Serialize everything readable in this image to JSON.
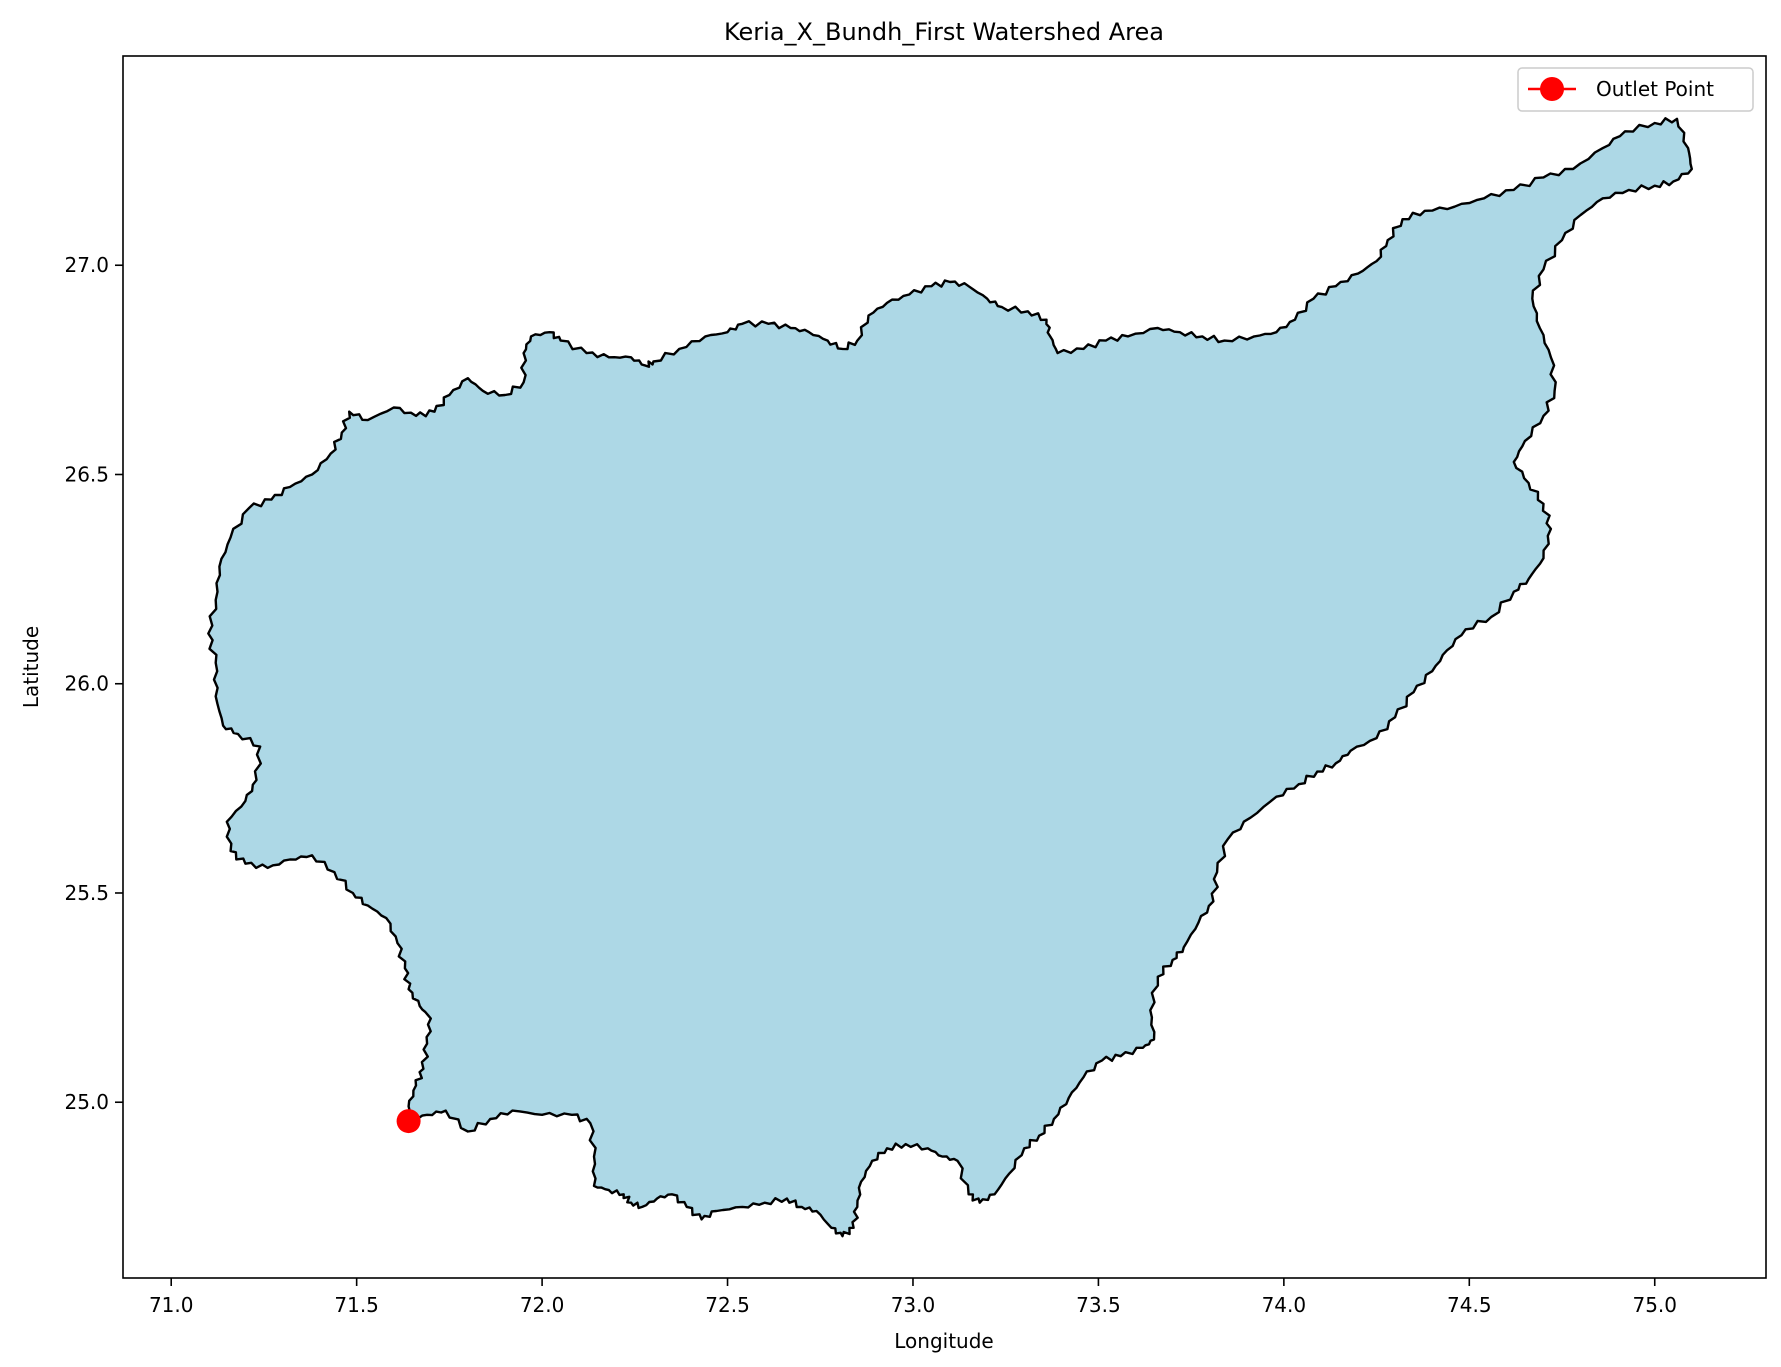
{
  "chart_data": {
    "type": "map",
    "title": "Keria_X_Bundh_First Watershed Area",
    "xlabel": "Longitude",
    "ylabel": "Latitude",
    "xlim": [
      70.87,
      75.3
    ],
    "ylim": [
      24.58,
      27.5
    ],
    "x_ticks": [
      71.0,
      71.5,
      72.0,
      72.5,
      73.0,
      73.5,
      74.0,
      74.5,
      75.0
    ],
    "x_tick_labels": [
      "71.0",
      "71.5",
      "72.0",
      "72.5",
      "73.0",
      "73.5",
      "74.0",
      "74.5",
      "75.0"
    ],
    "y_ticks": [
      25.0,
      25.5,
      26.0,
      26.5,
      27.0
    ],
    "y_tick_labels": [
      "25.0",
      "25.5",
      "26.0",
      "26.5",
      "27.0"
    ],
    "grid": false,
    "legend": {
      "placement": "upper right",
      "entries": [
        {
          "label": "Outlet Point",
          "color": "#ff0000",
          "marker": "circle"
        }
      ]
    },
    "outlet_point": {
      "label": "Outlet Point",
      "lon": 71.64,
      "lat": 24.955,
      "color": "#ff0000"
    },
    "watershed": {
      "fill": "#add8e6",
      "edge": "#000000",
      "boundary": [
        [
          71.64,
          24.955
        ],
        [
          71.69,
          24.97
        ],
        [
          71.74,
          24.98
        ],
        [
          71.8,
          24.93
        ],
        [
          71.86,
          24.96
        ],
        [
          71.92,
          24.98
        ],
        [
          72.0,
          24.97
        ],
        [
          72.08,
          24.97
        ],
        [
          72.13,
          24.95
        ],
        [
          72.14,
          24.87
        ],
        [
          72.14,
          24.8
        ],
        [
          72.18,
          24.79
        ],
        [
          72.22,
          24.78
        ],
        [
          72.24,
          24.76
        ],
        [
          72.27,
          24.75
        ],
        [
          72.31,
          24.77
        ],
        [
          72.35,
          24.78
        ],
        [
          72.39,
          24.75
        ],
        [
          72.43,
          24.72
        ],
        [
          72.47,
          24.74
        ],
        [
          72.54,
          24.75
        ],
        [
          72.6,
          24.76
        ],
        [
          72.66,
          24.77
        ],
        [
          72.7,
          24.75
        ],
        [
          72.74,
          24.74
        ],
        [
          72.78,
          24.7
        ],
        [
          72.81,
          24.68
        ],
        [
          72.84,
          24.7
        ],
        [
          72.85,
          24.75
        ],
        [
          72.86,
          24.81
        ],
        [
          72.89,
          24.86
        ],
        [
          72.93,
          24.89
        ],
        [
          72.98,
          24.9
        ],
        [
          73.04,
          24.89
        ],
        [
          73.08,
          24.87
        ],
        [
          73.12,
          24.86
        ],
        [
          73.15,
          24.78
        ],
        [
          73.18,
          24.76
        ],
        [
          73.22,
          24.78
        ],
        [
          73.26,
          24.83
        ],
        [
          73.3,
          24.89
        ],
        [
          73.34,
          24.92
        ],
        [
          73.38,
          24.96
        ],
        [
          73.42,
          25.01
        ],
        [
          73.46,
          25.06
        ],
        [
          73.51,
          25.1
        ],
        [
          73.56,
          25.11
        ],
        [
          73.62,
          25.13
        ],
        [
          73.65,
          25.15
        ],
        [
          73.64,
          25.22
        ],
        [
          73.66,
          25.3
        ],
        [
          73.7,
          25.34
        ],
        [
          73.73,
          25.37
        ],
        [
          73.77,
          25.43
        ],
        [
          73.81,
          25.48
        ],
        [
          73.82,
          25.55
        ],
        [
          73.85,
          25.63
        ],
        [
          73.91,
          25.68
        ],
        [
          73.98,
          25.73
        ],
        [
          74.04,
          25.76
        ],
        [
          74.09,
          25.79
        ],
        [
          74.14,
          25.81
        ],
        [
          74.18,
          25.84
        ],
        [
          74.25,
          25.87
        ],
        [
          74.3,
          25.92
        ],
        [
          74.35,
          25.98
        ],
        [
          74.4,
          26.03
        ],
        [
          74.44,
          26.08
        ],
        [
          74.49,
          26.13
        ],
        [
          74.56,
          26.16
        ],
        [
          74.62,
          26.22
        ],
        [
          74.66,
          26.25
        ],
        [
          74.7,
          26.3
        ],
        [
          74.72,
          26.37
        ],
        [
          74.7,
          26.43
        ],
        [
          74.66,
          26.48
        ],
        [
          74.62,
          26.53
        ],
        [
          74.65,
          26.58
        ],
        [
          74.7,
          26.64
        ],
        [
          74.73,
          26.7
        ],
        [
          74.72,
          26.78
        ],
        [
          74.69,
          26.85
        ],
        [
          74.67,
          26.92
        ],
        [
          74.7,
          26.99
        ],
        [
          74.75,
          27.06
        ],
        [
          74.8,
          27.12
        ],
        [
          74.86,
          27.16
        ],
        [
          74.93,
          27.18
        ],
        [
          75.0,
          27.19
        ],
        [
          75.05,
          27.2
        ],
        [
          75.1,
          27.23
        ],
        [
          75.09,
          27.28
        ],
        [
          75.06,
          27.35
        ],
        [
          75.0,
          27.34
        ],
        [
          74.92,
          27.32
        ],
        [
          74.86,
          27.28
        ],
        [
          74.78,
          27.23
        ],
        [
          74.7,
          27.21
        ],
        [
          74.62,
          27.18
        ],
        [
          74.54,
          27.16
        ],
        [
          74.46,
          27.14
        ],
        [
          74.38,
          27.13
        ],
        [
          74.32,
          27.11
        ],
        [
          74.28,
          27.06
        ],
        [
          74.25,
          27.01
        ],
        [
          74.2,
          26.98
        ],
        [
          74.14,
          26.95
        ],
        [
          74.08,
          26.92
        ],
        [
          74.03,
          26.87
        ],
        [
          73.98,
          26.84
        ],
        [
          73.92,
          26.83
        ],
        [
          73.84,
          26.82
        ],
        [
          73.78,
          26.83
        ],
        [
          73.72,
          26.84
        ],
        [
          73.66,
          26.85
        ],
        [
          73.58,
          26.83
        ],
        [
          73.52,
          26.82
        ],
        [
          73.46,
          26.8
        ],
        [
          73.39,
          26.79
        ],
        [
          73.37,
          26.83
        ],
        [
          73.36,
          26.87
        ],
        [
          73.31,
          26.89
        ],
        [
          73.24,
          26.9
        ],
        [
          73.2,
          26.92
        ],
        [
          73.15,
          26.95
        ],
        [
          73.1,
          26.96
        ],
        [
          73.05,
          26.95
        ],
        [
          72.99,
          26.93
        ],
        [
          72.93,
          26.91
        ],
        [
          72.88,
          26.88
        ],
        [
          72.85,
          26.82
        ],
        [
          72.81,
          26.8
        ],
        [
          72.77,
          26.82
        ],
        [
          72.72,
          26.84
        ],
        [
          72.67,
          26.85
        ],
        [
          72.61,
          26.86
        ],
        [
          72.54,
          26.86
        ],
        [
          72.5,
          26.84
        ],
        [
          72.44,
          26.83
        ],
        [
          72.37,
          26.8
        ],
        [
          72.3,
          26.77
        ],
        [
          72.28,
          26.76
        ],
        [
          72.24,
          26.78
        ],
        [
          72.18,
          26.78
        ],
        [
          72.12,
          26.79
        ],
        [
          72.05,
          26.82
        ],
        [
          72.02,
          26.84
        ],
        [
          71.97,
          26.83
        ],
        [
          71.95,
          26.79
        ],
        [
          71.95,
          26.72
        ],
        [
          71.9,
          26.69
        ],
        [
          71.84,
          26.7
        ],
        [
          71.8,
          26.73
        ],
        [
          71.75,
          26.69
        ],
        [
          71.71,
          26.65
        ],
        [
          71.66,
          26.64
        ],
        [
          71.6,
          26.66
        ],
        [
          71.53,
          26.63
        ],
        [
          71.48,
          26.65
        ],
        [
          71.46,
          26.6
        ],
        [
          71.43,
          26.55
        ],
        [
          71.38,
          26.5
        ],
        [
          71.32,
          26.47
        ],
        [
          71.27,
          26.44
        ],
        [
          71.21,
          26.42
        ],
        [
          71.16,
          26.35
        ],
        [
          71.13,
          26.28
        ],
        [
          71.12,
          26.2
        ],
        [
          71.1,
          26.12
        ],
        [
          71.12,
          26.05
        ],
        [
          71.12,
          25.97
        ],
        [
          71.14,
          25.9
        ],
        [
          71.18,
          25.88
        ],
        [
          71.24,
          25.85
        ],
        [
          71.23,
          25.77
        ],
        [
          71.2,
          25.72
        ],
        [
          71.15,
          25.67
        ],
        [
          71.16,
          25.6
        ],
        [
          71.2,
          25.57
        ],
        [
          71.26,
          25.56
        ],
        [
          71.32,
          25.58
        ],
        [
          71.38,
          25.59
        ],
        [
          71.44,
          25.55
        ],
        [
          71.49,
          25.5
        ],
        [
          71.53,
          25.47
        ],
        [
          71.58,
          25.44
        ],
        [
          71.61,
          25.38
        ],
        [
          71.63,
          25.32
        ],
        [
          71.64,
          25.27
        ],
        [
          71.67,
          25.23
        ],
        [
          71.7,
          25.2
        ],
        [
          71.69,
          25.14
        ],
        [
          71.68,
          25.08
        ],
        [
          71.66,
          25.04
        ],
        [
          71.64,
          24.99
        ]
      ]
    }
  }
}
